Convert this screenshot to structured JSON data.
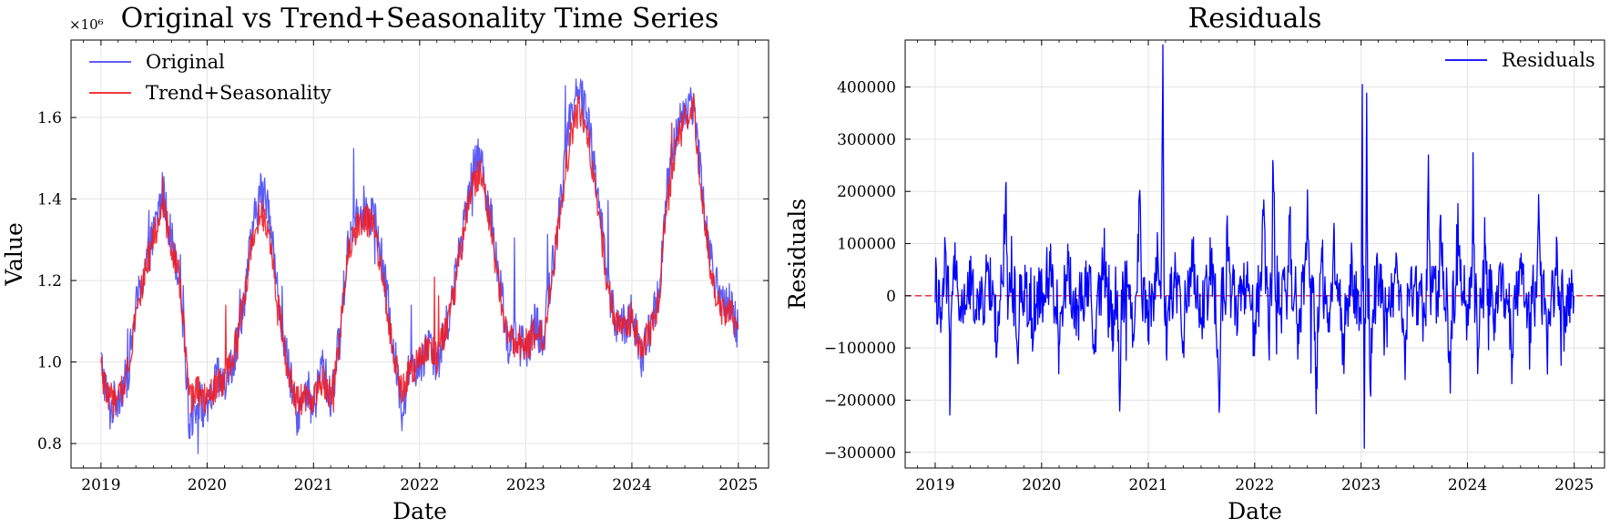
{
  "chart_data": [
    {
      "type": "line",
      "title": "Original vs Trend+Seasonality Time Series",
      "xlabel": "Date",
      "ylabel": "Value",
      "y_multiplier_label": "×10⁶",
      "xlim": [
        "2018-09-20",
        "2025-04-15"
      ],
      "ylim": [
        740000,
        1790000
      ],
      "x_ticks": [
        "2019",
        "2020",
        "2021",
        "2022",
        "2023",
        "2024",
        "2025"
      ],
      "y_ticks": [
        {
          "value": 800000,
          "label": "0.8"
        },
        {
          "value": 1000000,
          "label": "1.0"
        },
        {
          "value": 1200000,
          "label": "1.2"
        },
        {
          "value": 1400000,
          "label": "1.4"
        },
        {
          "value": 1600000,
          "label": "1.6"
        }
      ],
      "grid": true,
      "legend": "top-left",
      "series": [
        {
          "name": "Original",
          "color": "#4a4af5",
          "x": [
            "2019-01-01",
            "2019-02-01",
            "2019-03-01",
            "2019-04-01",
            "2019-05-01",
            "2019-06-01",
            "2019-07-01",
            "2019-08-01",
            "2019-09-01",
            "2019-10-01",
            "2019-11-01",
            "2019-12-01",
            "2020-01-01",
            "2020-02-01",
            "2020-03-01",
            "2020-04-01",
            "2020-05-01",
            "2020-06-01",
            "2020-07-01",
            "2020-08-01",
            "2020-09-01",
            "2020-10-01",
            "2020-11-01",
            "2020-12-01",
            "2021-01-01",
            "2021-02-01",
            "2021-03-01",
            "2021-04-01",
            "2021-05-01",
            "2021-06-01",
            "2021-07-01",
            "2021-08-01",
            "2021-09-01",
            "2021-10-01",
            "2021-11-01",
            "2021-12-01",
            "2022-01-01",
            "2022-02-01",
            "2022-03-01",
            "2022-04-01",
            "2022-05-01",
            "2022-06-01",
            "2022-07-01",
            "2022-08-01",
            "2022-09-01",
            "2022-10-01",
            "2022-11-01",
            "2022-12-01",
            "2023-01-01",
            "2023-02-01",
            "2023-03-01",
            "2023-04-01",
            "2023-05-01",
            "2023-06-01",
            "2023-07-01",
            "2023-08-01",
            "2023-09-01",
            "2023-10-01",
            "2023-11-01",
            "2023-12-01",
            "2024-01-01",
            "2024-02-01",
            "2024-03-01",
            "2024-04-01",
            "2024-05-01",
            "2024-06-01",
            "2024-07-01",
            "2024-08-01",
            "2024-09-01",
            "2024-10-01",
            "2024-11-01",
            "2024-12-01",
            "2024-12-31"
          ],
          "values": [
            1000000,
            880000,
            920000,
            960000,
            1130000,
            1230000,
            1310000,
            1420000,
            1300000,
            1210000,
            850000,
            910000,
            870000,
            960000,
            940000,
            1000000,
            1120000,
            1300000,
            1420000,
            1390000,
            1150000,
            1010000,
            870000,
            910000,
            880000,
            1000000,
            900000,
            1060000,
            1300000,
            1380000,
            1380000,
            1350000,
            1210000,
            1050000,
            880000,
            1000000,
            980000,
            1060000,
            990000,
            1080000,
            1190000,
            1340000,
            1480000,
            1500000,
            1360000,
            1220000,
            1040000,
            1060000,
            1020000,
            1100000,
            1050000,
            1230000,
            1390000,
            1610000,
            1680000,
            1600000,
            1450000,
            1250000,
            1100000,
            1090000,
            1120000,
            1000000,
            1070000,
            1170000,
            1420000,
            1560000,
            1620000,
            1640000,
            1400000,
            1240000,
            1140000,
            1140000,
            1080000
          ]
        },
        {
          "name": "Trend+Seasonality",
          "color": "#ee1c25",
          "x": [
            "2019-01-01",
            "2019-02-01",
            "2019-03-01",
            "2019-04-01",
            "2019-05-01",
            "2019-06-01",
            "2019-07-01",
            "2019-08-01",
            "2019-09-01",
            "2019-10-01",
            "2019-11-01",
            "2019-12-01",
            "2020-01-01",
            "2020-02-01",
            "2020-03-01",
            "2020-04-01",
            "2020-05-01",
            "2020-06-01",
            "2020-07-01",
            "2020-08-01",
            "2020-09-01",
            "2020-10-01",
            "2020-11-01",
            "2020-12-01",
            "2021-01-01",
            "2021-02-01",
            "2021-03-01",
            "2021-04-01",
            "2021-05-01",
            "2021-06-01",
            "2021-07-01",
            "2021-08-01",
            "2021-09-01",
            "2021-10-01",
            "2021-11-01",
            "2021-12-01",
            "2022-01-01",
            "2022-02-01",
            "2022-03-01",
            "2022-04-01",
            "2022-05-01",
            "2022-06-01",
            "2022-07-01",
            "2022-08-01",
            "2022-09-01",
            "2022-10-01",
            "2022-11-01",
            "2022-12-01",
            "2023-01-01",
            "2023-02-01",
            "2023-03-01",
            "2023-04-01",
            "2023-05-01",
            "2023-06-01",
            "2023-07-01",
            "2023-08-01",
            "2023-09-01",
            "2023-10-01",
            "2023-11-01",
            "2023-12-01",
            "2024-01-01",
            "2024-02-01",
            "2024-03-01",
            "2024-04-01",
            "2024-05-01",
            "2024-06-01",
            "2024-07-01",
            "2024-08-01",
            "2024-09-01",
            "2024-10-01",
            "2024-11-01",
            "2024-12-01",
            "2024-12-31"
          ],
          "values": [
            980000,
            900000,
            900000,
            980000,
            1120000,
            1220000,
            1300000,
            1380000,
            1290000,
            1190000,
            900000,
            930000,
            900000,
            940000,
            950000,
            1020000,
            1130000,
            1280000,
            1380000,
            1330000,
            1140000,
            990000,
            900000,
            910000,
            910000,
            960000,
            920000,
            1040000,
            1280000,
            1340000,
            1350000,
            1320000,
            1180000,
            1030000,
            920000,
            980000,
            1000000,
            1040000,
            1010000,
            1080000,
            1180000,
            1310000,
            1440000,
            1460000,
            1340000,
            1180000,
            1050000,
            1050000,
            1040000,
            1070000,
            1060000,
            1210000,
            1380000,
            1540000,
            1620000,
            1560000,
            1410000,
            1230000,
            1110000,
            1080000,
            1110000,
            1030000,
            1070000,
            1150000,
            1380000,
            1520000,
            1600000,
            1620000,
            1390000,
            1210000,
            1120000,
            1120000,
            1090000
          ]
        }
      ]
    },
    {
      "type": "line",
      "title": "Residuals",
      "xlabel": "Date",
      "ylabel": "Residuals",
      "xlim": [
        "2018-09-20",
        "2025-04-15"
      ],
      "ylim": [
        -330000,
        490000
      ],
      "x_ticks": [
        "2019",
        "2020",
        "2021",
        "2022",
        "2023",
        "2024",
        "2025"
      ],
      "y_ticks": [
        {
          "value": -300000,
          "label": "−300000"
        },
        {
          "value": -200000,
          "label": "−200000"
        },
        {
          "value": -100000,
          "label": "−100000"
        },
        {
          "value": 0,
          "label": "0"
        },
        {
          "value": 100000,
          "label": "100000"
        },
        {
          "value": 200000,
          "label": "200000"
        },
        {
          "value": 300000,
          "label": "300000"
        },
        {
          "value": 400000,
          "label": "400000"
        }
      ],
      "grid": true,
      "legend": "top-right",
      "reference_line": {
        "y": 0,
        "color": "#ee1c25",
        "style": "dashed"
      },
      "series": [
        {
          "name": "Residuals",
          "color": "#0000ff",
          "x": [
            "2019-01-01",
            "2019-01-20",
            "2019-02-05",
            "2019-02-20",
            "2019-03-10",
            "2019-04-01",
            "2019-05-01",
            "2019-06-01",
            "2019-07-01",
            "2019-08-01",
            "2019-09-01",
            "2019-09-20",
            "2019-10-10",
            "2019-11-01",
            "2019-12-01",
            "2020-01-01",
            "2020-02-01",
            "2020-03-01",
            "2020-04-01",
            "2020-05-01",
            "2020-06-01",
            "2020-07-01",
            "2020-08-01",
            "2020-09-01",
            "2020-09-25",
            "2020-10-15",
            "2020-11-10",
            "2020-12-01",
            "2021-01-01",
            "2021-02-01",
            "2021-02-20",
            "2021-03-05",
            "2021-04-01",
            "2021-05-01",
            "2021-06-01",
            "2021-07-01",
            "2021-08-01",
            "2021-09-01",
            "2021-10-01",
            "2021-11-01",
            "2021-12-01",
            "2022-01-01",
            "2022-02-01",
            "2022-02-20",
            "2022-03-05",
            "2022-04-01",
            "2022-05-01",
            "2022-06-01",
            "2022-07-01",
            "2022-08-01",
            "2022-08-20",
            "2022-09-10",
            "2022-10-01",
            "2022-11-01",
            "2022-12-01",
            "2022-12-28",
            "2023-01-05",
            "2023-01-12",
            "2023-01-20",
            "2023-02-01",
            "2023-03-01",
            "2023-04-01",
            "2023-05-01",
            "2023-06-01",
            "2023-07-01",
            "2023-08-01",
            "2023-08-20",
            "2023-09-10",
            "2023-10-01",
            "2023-11-01",
            "2023-12-01",
            "2024-01-01",
            "2024-01-20",
            "2024-02-05",
            "2024-03-01",
            "2024-04-01",
            "2024-05-01",
            "2024-06-01",
            "2024-07-01",
            "2024-08-01",
            "2024-09-01",
            "2024-10-01",
            "2024-11-01",
            "2024-12-01",
            "2024-12-31"
          ],
          "values": [
            30000,
            -90000,
            120000,
            -190000,
            60000,
            -50000,
            20000,
            -40000,
            60000,
            -100000,
            190000,
            60000,
            -110000,
            10000,
            -100000,
            -20000,
            60000,
            -100000,
            80000,
            -60000,
            30000,
            -120000,
            90000,
            -50000,
            -190000,
            40000,
            -60000,
            210000,
            -50000,
            100000,
            460000,
            -140000,
            40000,
            -80000,
            100000,
            -60000,
            90000,
            -180000,
            120000,
            -60000,
            20000,
            -120000,
            180000,
            -80000,
            310000,
            -40000,
            140000,
            -100000,
            160000,
            -190000,
            90000,
            -60000,
            100000,
            -120000,
            60000,
            -80000,
            460000,
            -290000,
            330000,
            -180000,
            40000,
            -60000,
            120000,
            -140000,
            20000,
            -30000,
            230000,
            50000,
            160000,
            -170000,
            100000,
            -60000,
            230000,
            -200000,
            120000,
            -80000,
            30000,
            -140000,
            60000,
            -60000,
            150000,
            -100000,
            90000,
            -80000,
            0
          ]
        }
      ]
    }
  ]
}
